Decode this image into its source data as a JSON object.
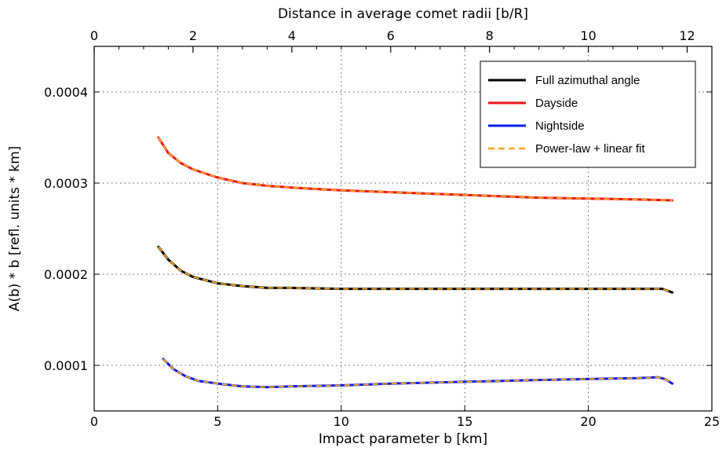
{
  "chart_data": {
    "type": "line",
    "xlabel": "Impact parameter b [km]",
    "ylabel": "A(b) * b [refl. units * km]",
    "x2label": "Distance in average comet radii [b/R]",
    "xlim": [
      0,
      25
    ],
    "ylim": [
      5e-05,
      0.00045
    ],
    "x2lim": [
      0,
      12.5
    ],
    "xticks": [
      0,
      5,
      10,
      15,
      20,
      25
    ],
    "xtick_labels": [
      "0",
      "5",
      "10",
      "15",
      "20",
      "25"
    ],
    "x2ticks": [
      0,
      2,
      4,
      6,
      8,
      10,
      12
    ],
    "x2tick_labels": [
      "0",
      "2",
      "4",
      "6",
      "8",
      "10",
      "12"
    ],
    "yticks": [
      0.0001,
      0.0002,
      0.0003,
      0.0004
    ],
    "ytick_labels": [
      "0.0001",
      "0.0002",
      "0.0003",
      "0.0004"
    ],
    "grid": true,
    "legend_position": "top-right",
    "series": [
      {
        "name": "Full azimuthal angle",
        "color": "#000000",
        "x": [
          2.6,
          3.0,
          3.5,
          4.0,
          5.0,
          6.0,
          7.0,
          8.0,
          10.0,
          12.0,
          15.0,
          18.0,
          20.0,
          22.0,
          23.0,
          23.4
        ],
        "y": [
          0.00023,
          0.000216,
          0.000204,
          0.000197,
          0.00019,
          0.000187,
          0.000185,
          0.000185,
          0.000184,
          0.000184,
          0.000184,
          0.000184,
          0.000184,
          0.000184,
          0.000184,
          0.00018
        ]
      },
      {
        "name": "Dayside",
        "color": "#e8151b",
        "x": [
          2.6,
          3.0,
          3.5,
          4.0,
          5.0,
          6.0,
          7.0,
          8.0,
          10.0,
          12.0,
          15.0,
          18.0,
          20.0,
          22.0,
          23.4
        ],
        "y": [
          0.00035,
          0.000333,
          0.000322,
          0.000315,
          0.000306,
          0.0003,
          0.000297,
          0.000295,
          0.000292,
          0.00029,
          0.000287,
          0.000284,
          0.000283,
          0.000282,
          0.000281
        ]
      },
      {
        "name": "Nightside",
        "color": "#0a1ee8",
        "x": [
          2.8,
          3.2,
          3.7,
          4.2,
          5.0,
          6.0,
          7.0,
          8.0,
          10.0,
          12.0,
          15.0,
          18.0,
          20.0,
          22.0,
          22.8,
          23.1,
          23.4
        ],
        "y": [
          0.000107,
          9.6e-05,
          8.8e-05,
          8.3e-05,
          8e-05,
          7.7e-05,
          7.6e-05,
          7.7e-05,
          7.8e-05,
          8e-05,
          8.2e-05,
          8.4e-05,
          8.5e-05,
          8.6e-05,
          8.7e-05,
          8.5e-05,
          8e-05
        ]
      },
      {
        "name": "Power-law + linear fit",
        "color": "#f5a623",
        "dashed": true
      }
    ]
  }
}
